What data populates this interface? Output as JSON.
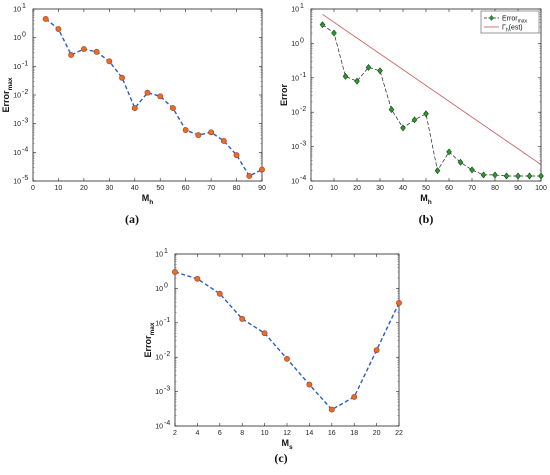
{
  "chart_data": [
    {
      "id": "a",
      "panel_label": "(a)",
      "type": "line",
      "xlabel": "M",
      "xlabel_sub": "h",
      "ylabel": "Error",
      "ylabel_sub": "max",
      "yscale": "log",
      "xlim": [
        0,
        90
      ],
      "ylim": [
        1e-05,
        10
      ],
      "xticks": [
        "0",
        "10",
        "20",
        "30",
        "40",
        "50",
        "60",
        "70",
        "80",
        "90"
      ],
      "yticks": [
        "10",
        "10",
        "10",
        "10",
        "10",
        "10",
        "10"
      ],
      "ytick_exps": [
        "-5",
        "-4",
        "-3",
        "-2",
        "-1",
        "0",
        "1"
      ],
      "series": [
        {
          "style": "dashed line with filled circle markers",
          "line_color": "#2a5cc8",
          "marker_color": "#e8701c",
          "marker_edge": "#b0403a",
          "x": [
            5,
            10,
            15,
            20,
            25,
            30,
            35,
            40,
            45,
            50,
            55,
            60,
            65,
            70,
            75,
            80,
            85,
            90
          ],
          "y": [
            4.5,
            2.0,
            0.25,
            0.4,
            0.32,
            0.15,
            0.04,
            0.0035,
            0.012,
            0.009,
            0.0035,
            0.0006,
            0.0004,
            0.0005,
            0.00025,
            8e-05,
            1.5e-05,
            2.5e-05
          ]
        }
      ]
    },
    {
      "id": "b",
      "panel_label": "(b)",
      "type": "line",
      "xlabel": "M",
      "xlabel_sub": "h",
      "ylabel": "Error",
      "ylabel_sub": "",
      "yscale": "log",
      "xlim": [
        0,
        100
      ],
      "ylim": [
        0.0001,
        10
      ],
      "xticks": [
        "0",
        "10",
        "20",
        "30",
        "40",
        "50",
        "60",
        "70",
        "80",
        "90",
        "100"
      ],
      "yticks": [
        "10",
        "10",
        "10",
        "10",
        "10",
        "10"
      ],
      "ytick_exps": [
        "-4",
        "-3",
        "-2",
        "-1",
        "0",
        "1"
      ],
      "legend_position": "top-right",
      "series": [
        {
          "name": "Error",
          "name_sub": "max",
          "style": "dashed line with diamond markers",
          "line_color": "#222222",
          "marker_color": "#2e9a2e",
          "marker_edge": "#114411",
          "x": [
            5,
            10,
            15,
            20,
            25,
            30,
            35,
            40,
            45,
            50,
            55,
            60,
            65,
            70,
            75,
            80,
            85,
            90,
            95,
            100
          ],
          "y": [
            3.5,
            2.0,
            0.11,
            0.08,
            0.2,
            0.16,
            0.012,
            0.0035,
            0.006,
            0.009,
            0.0002,
            0.0007,
            0.00035,
            0.00021,
            0.00015,
            0.00015,
            0.00014,
            0.00014,
            0.00014,
            0.00014
          ]
        },
        {
          "name": "Γ",
          "name_sub": "h",
          "name_suffix": "(est)",
          "style": "solid line",
          "line_color": "#cc5555",
          "x": [
            5,
            100
          ],
          "y": [
            7,
            0.0003
          ]
        }
      ]
    },
    {
      "id": "c",
      "panel_label": "(c)",
      "type": "line",
      "xlabel": "M",
      "xlabel_sub": "s",
      "ylabel": "Error",
      "ylabel_sub": "max",
      "yscale": "log",
      "xlim": [
        2,
        22
      ],
      "ylim": [
        0.0001,
        10
      ],
      "xticks": [
        "2",
        "4",
        "6",
        "8",
        "10",
        "12",
        "14",
        "16",
        "18",
        "20",
        "22"
      ],
      "yticks": [
        "10",
        "10",
        "10",
        "10",
        "10",
        "10"
      ],
      "ytick_exps": [
        "-4",
        "-3",
        "-2",
        "-1",
        "0",
        "1"
      ],
      "series": [
        {
          "style": "dashed line with filled circle markers",
          "line_color": "#2a5cc8",
          "marker_color": "#e8701c",
          "marker_edge": "#b0403a",
          "x": [
            2,
            4,
            6,
            8,
            10,
            12,
            14,
            16,
            18,
            20,
            22
          ],
          "y": [
            3.0,
            1.9,
            0.7,
            0.13,
            0.05,
            0.009,
            0.0016,
            0.0003,
            0.0007,
            0.016,
            0.38
          ]
        }
      ]
    }
  ]
}
